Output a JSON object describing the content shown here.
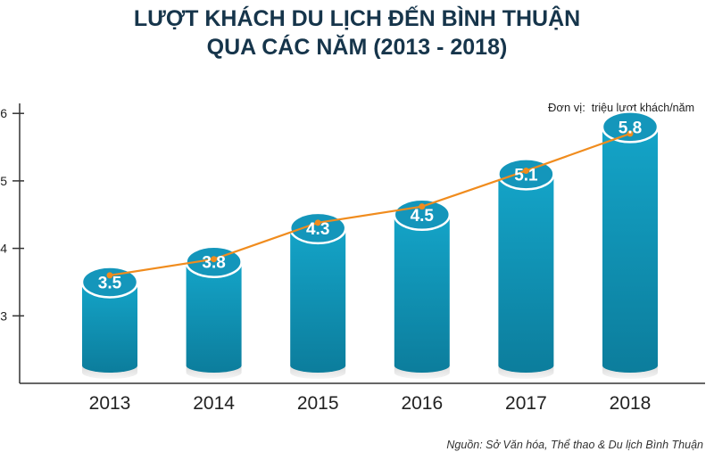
{
  "title_line1": "LƯỢT KHÁCH DU LỊCH ĐẾN BÌNH THUẬN",
  "title_line2": "QUA CÁC NĂM (2013 - 2018)",
  "unit_label": "Đơn vị:",
  "unit_value": "triệu lượt khách/năm",
  "source": "Nguồn: Sở Văn hóa, Thể thao & Du lịch Bình Thuận",
  "colors": {
    "title": "#16354b",
    "bar_top": "#14a4c8",
    "bar_bottom": "#0c7d9c",
    "cap": "#1496bb",
    "line": "#f08c1e",
    "axis": "#333333"
  },
  "chart_data": {
    "type": "bar",
    "title": "LƯỢT KHÁCH DU LỊCH ĐẾN BÌNH THUẬN QUA CÁC NĂM (2013 - 2018)",
    "xlabel": "",
    "ylabel": "",
    "categories": [
      "2013",
      "2014",
      "2015",
      "2016",
      "2017",
      "2018"
    ],
    "values": [
      3.5,
      3.8,
      4.3,
      4.5,
      5.1,
      5.8
    ],
    "data_labels": [
      "3.5",
      "3.8",
      "4.3",
      "4.5",
      "5.1",
      "5.8"
    ],
    "line_values": [
      3.6,
      3.84,
      4.38,
      4.62,
      5.15,
      5.7
    ],
    "yticks": [
      3,
      4,
      5,
      6
    ],
    "ytick_labels": [
      "3",
      "4",
      "5",
      "6"
    ],
    "ylim": [
      2,
      6
    ],
    "grid": false,
    "legend": "none"
  }
}
